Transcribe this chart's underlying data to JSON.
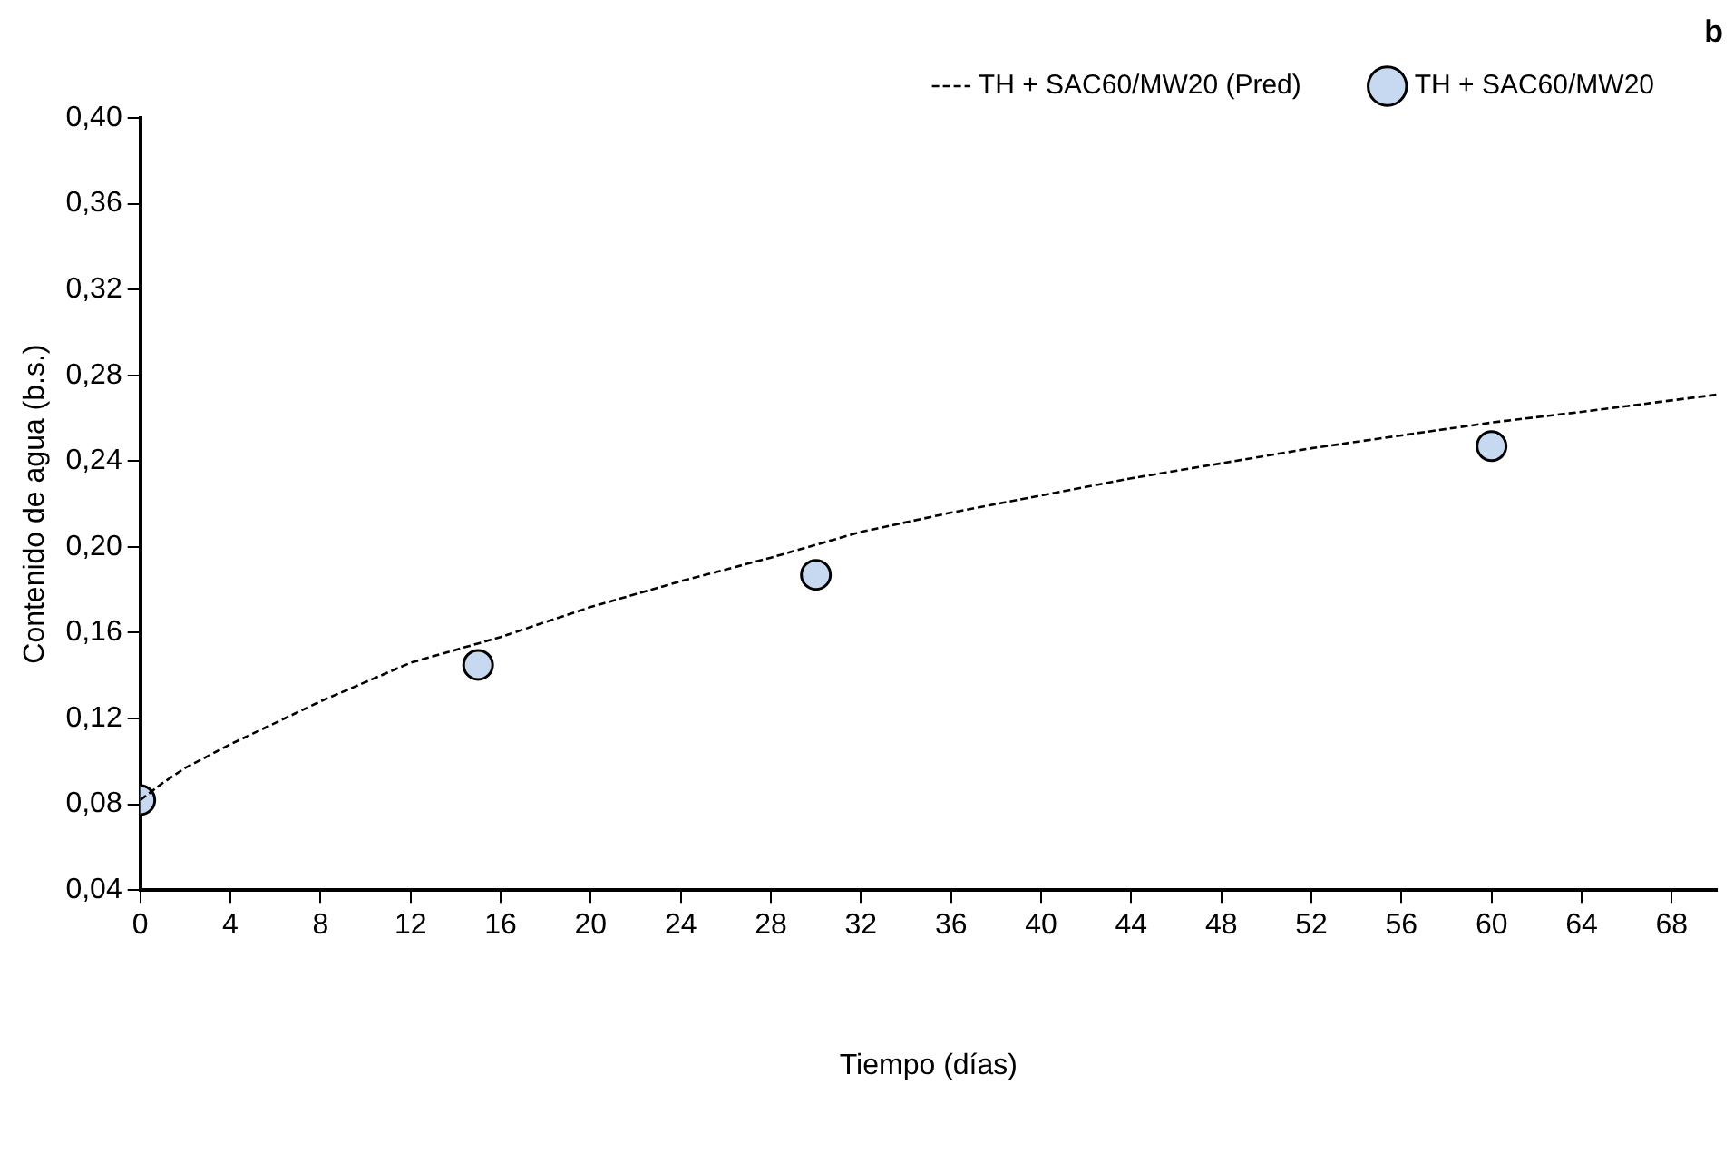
{
  "chart_data": {
    "type": "scatter",
    "xlabel": "Tiempo (días)",
    "ylabel": "Contenido de agua (b.s.)",
    "annotations": [
      "b"
    ],
    "xlim": [
      0,
      70
    ],
    "xticks": [
      0,
      4,
      8,
      12,
      16,
      20,
      24,
      28,
      32,
      36,
      40,
      44,
      48,
      52,
      56,
      60,
      64,
      68
    ],
    "ylim": [
      0.04,
      0.4
    ],
    "yticks": [
      {
        "value": 0.04,
        "label": "0,04"
      },
      {
        "value": 0.08,
        "label": "0,08"
      },
      {
        "value": 0.12,
        "label": "0,12"
      },
      {
        "value": 0.16,
        "label": "0,16"
      },
      {
        "value": 0.2,
        "label": "0,20"
      },
      {
        "value": 0.24,
        "label": "0,24"
      },
      {
        "value": 0.28,
        "label": "0,28"
      },
      {
        "value": 0.32,
        "label": "0,32"
      },
      {
        "value": 0.36,
        "label": "0,36"
      },
      {
        "value": 0.4,
        "label": "0,40"
      }
    ],
    "grid": false,
    "legend": "top",
    "series": [
      {
        "name": "TH + SAC60/MW20 (Pred)",
        "type": "line",
        "line_style": "dashed",
        "marker": "none",
        "color": "#000000",
        "x": [
          0,
          1,
          2,
          4,
          8,
          12,
          16,
          20,
          24,
          28,
          32,
          36,
          40,
          44,
          48,
          52,
          56,
          60,
          64,
          70
        ],
        "values": [
          0.082,
          0.09,
          0.097,
          0.108,
          0.128,
          0.146,
          0.158,
          0.172,
          0.184,
          0.195,
          0.207,
          0.216,
          0.224,
          0.232,
          0.239,
          0.246,
          0.252,
          0.258,
          0.263,
          0.271
        ]
      },
      {
        "name": "TH + SAC60/MW20",
        "marker": "circle",
        "color": "#c6d9f1",
        "x": [
          0,
          15,
          30,
          60
        ],
        "values": [
          0.082,
          0.145,
          0.187,
          0.247
        ]
      }
    ]
  }
}
